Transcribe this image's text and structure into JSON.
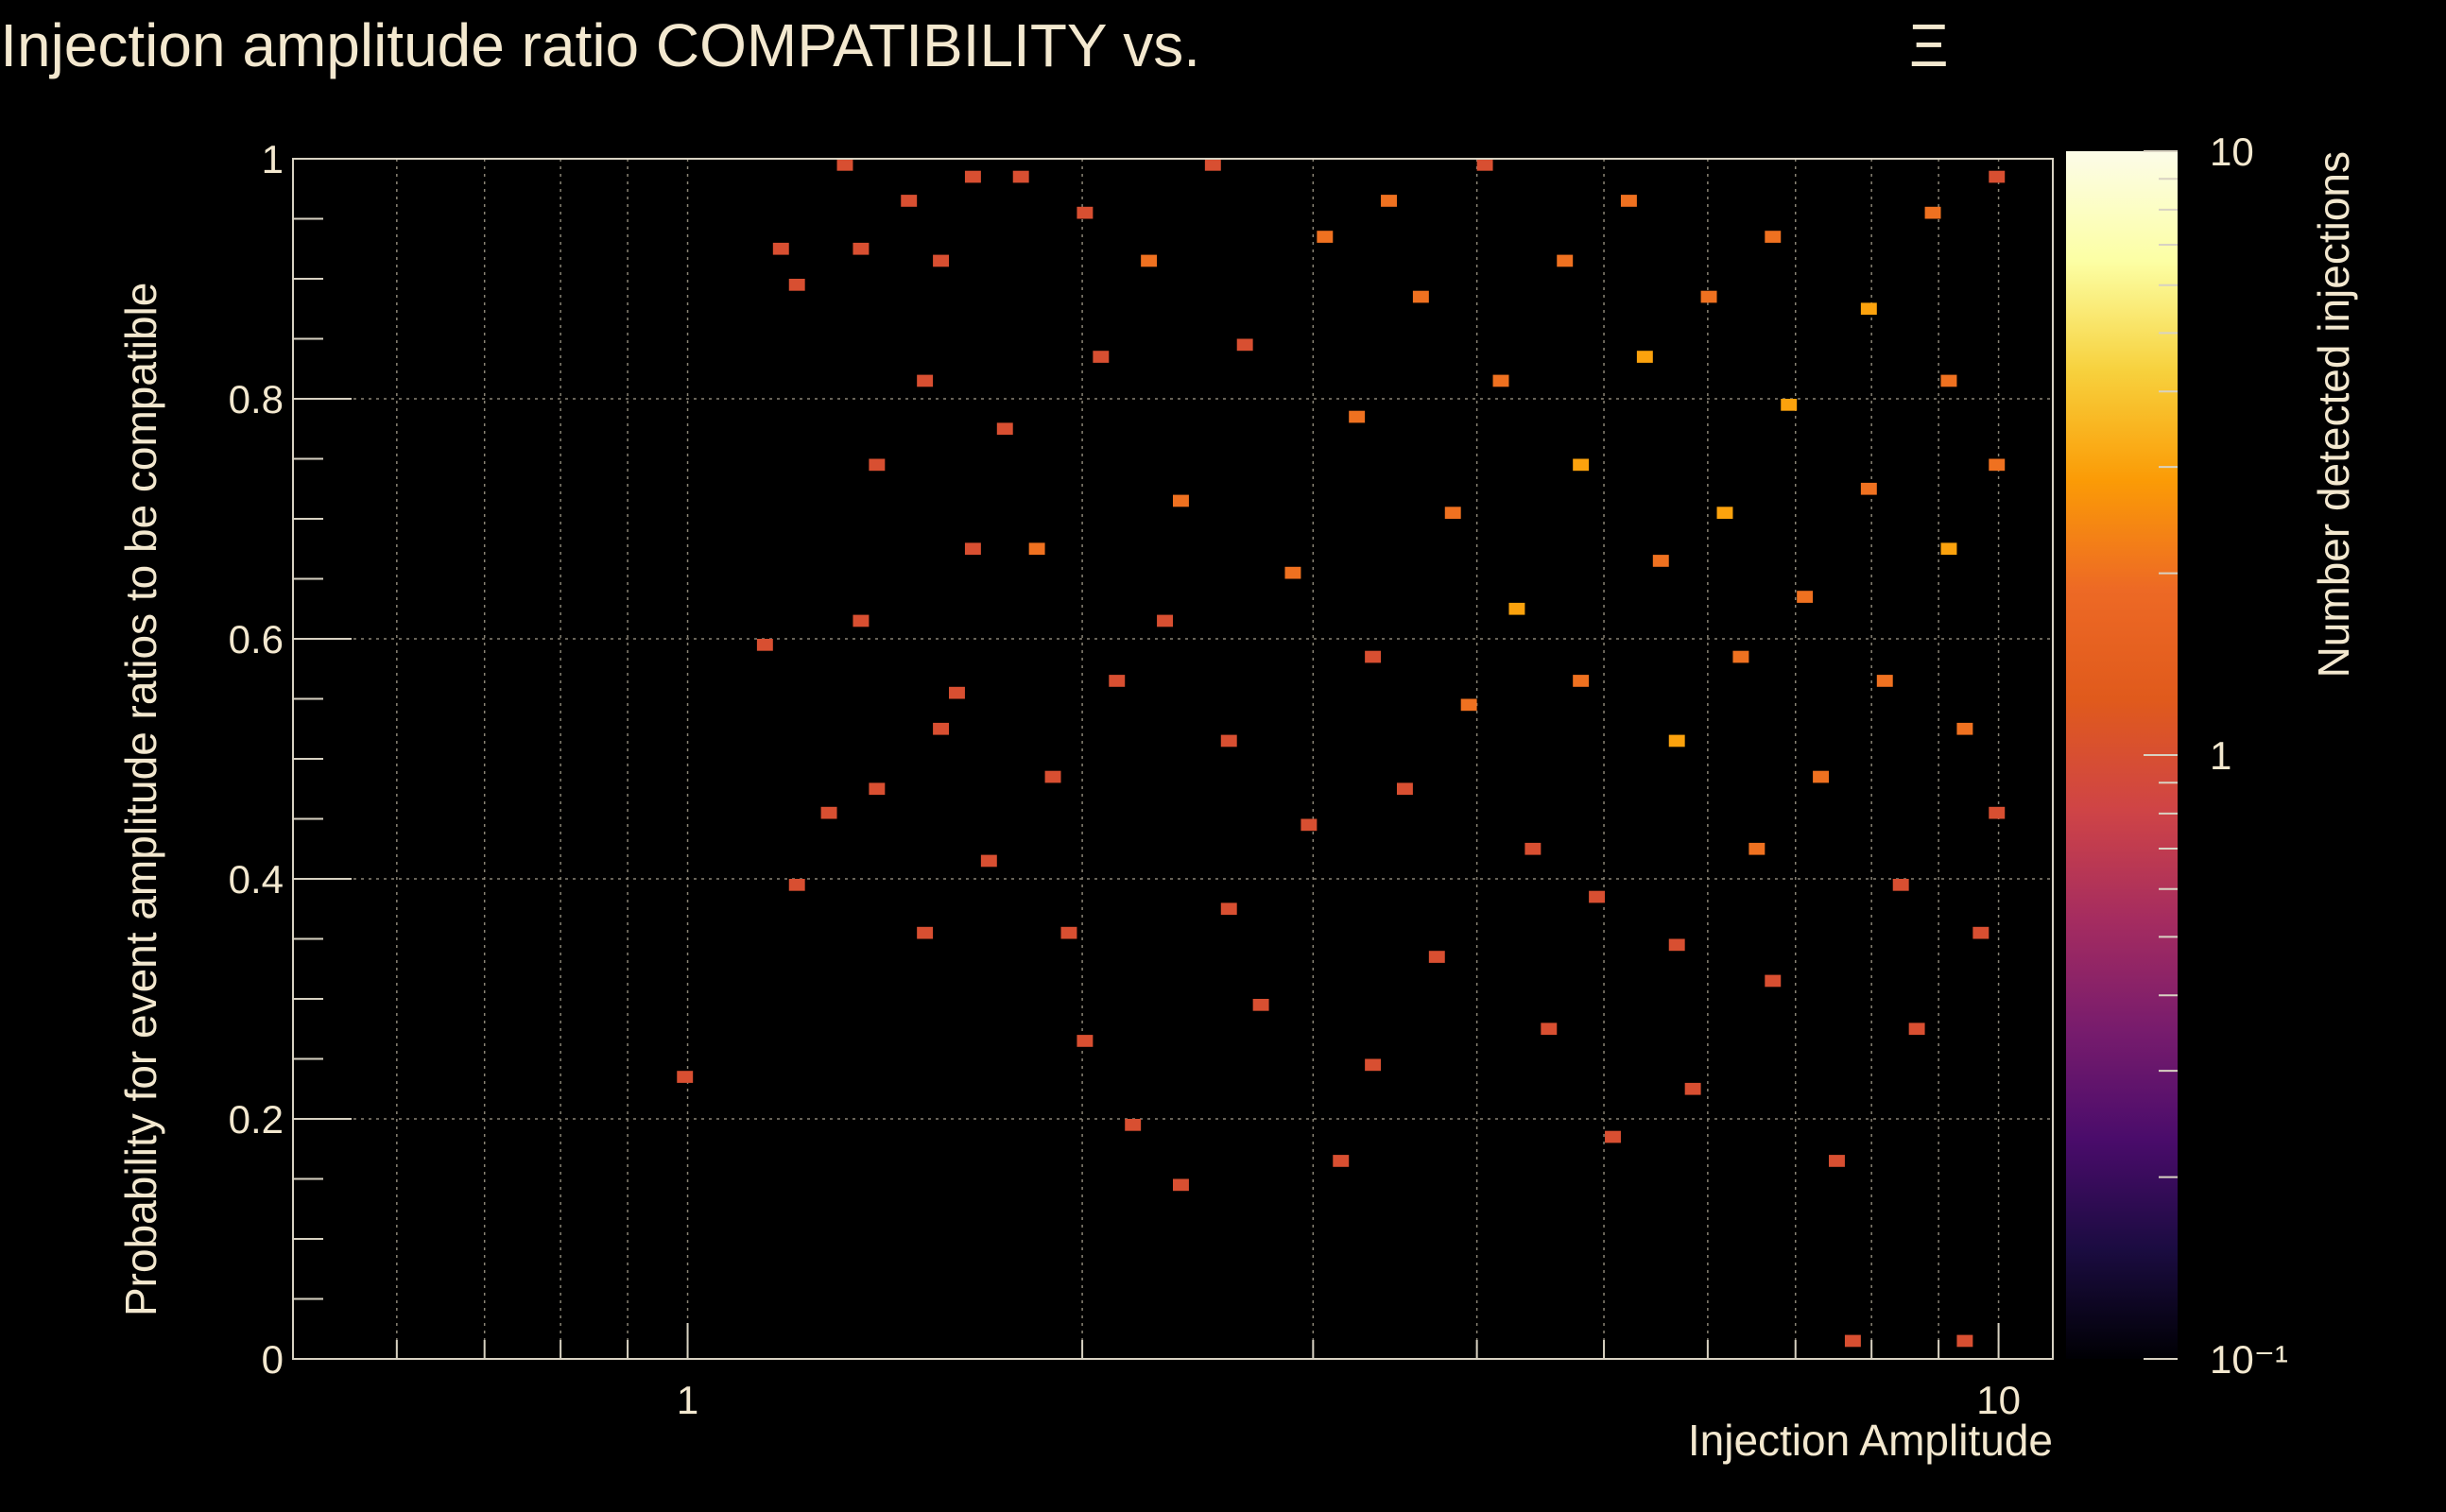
{
  "chart_data": {
    "type": "heatmap",
    "title": "Injection amplitude ratio COMPATIBILITY vs.",
    "title_symbol": "Ξ",
    "xlabel": "Injection Amplitude",
    "ylabel": "Probability for event amplitude ratios to be compatible",
    "colorbar_label": "Number detected injections",
    "x_scale": "log",
    "xlim": [
      0.5,
      11.0
    ],
    "ylim": [
      0,
      1
    ],
    "grid": true,
    "x_ticks": [
      {
        "value": 1,
        "label": "1"
      },
      {
        "value": 10,
        "label": "10"
      }
    ],
    "y_ticks": [
      {
        "value": 0,
        "label": "0"
      },
      {
        "value": 0.2,
        "label": "0.2"
      },
      {
        "value": 0.4,
        "label": "0.4"
      },
      {
        "value": 0.6,
        "label": "0.6"
      },
      {
        "value": 0.8,
        "label": "0.8"
      },
      {
        "value": 1,
        "label": "1"
      }
    ],
    "colorbar": {
      "scale": "log",
      "range": [
        0.1,
        10
      ],
      "ticks": [
        {
          "value": 10,
          "label": "10"
        },
        {
          "value": 1,
          "label": "1"
        },
        {
          "value": 0.1,
          "label": "10⁻¹"
        }
      ],
      "colormap": [
        "#000004",
        "#1b0c41",
        "#4a0c6b",
        "#781c6d",
        "#a52c60",
        "#cf4446",
        "#e05a1c",
        "#ed6925",
        "#fb9b06",
        "#f7d13d",
        "#fcffa4",
        "#fcfce8"
      ]
    },
    "x_bins": {
      "min": 0.5,
      "max": 11.0,
      "count": 110,
      "scale": "log"
    },
    "y_bins": {
      "min": 0,
      "max": 1,
      "count": 100
    },
    "cells": [
      [
        0.986,
        0.234,
        1
      ],
      [
        1.13,
        0.595,
        1
      ],
      [
        1.19,
        0.925,
        1
      ],
      [
        1.21,
        0.398,
        1
      ],
      [
        1.22,
        0.894,
        1
      ],
      [
        1.28,
        0.457,
        1
      ],
      [
        1.32,
        0.99,
        1
      ],
      [
        1.34,
        0.618,
        1
      ],
      [
        1.35,
        0.925,
        1
      ],
      [
        1.4,
        0.475,
        1
      ],
      [
        1.41,
        0.743,
        1
      ],
      [
        1.48,
        0.96,
        1
      ],
      [
        1.5,
        0.812,
        1
      ],
      [
        1.52,
        0.355,
        1
      ],
      [
        1.55,
        0.52,
        1
      ],
      [
        1.57,
        0.91,
        1
      ],
      [
        1.61,
        0.553,
        1
      ],
      [
        1.63,
        0.678,
        1
      ],
      [
        1.66,
        0.989,
        1
      ],
      [
        1.7,
        0.412,
        1
      ],
      [
        1.74,
        0.77,
        1
      ],
      [
        1.8,
        0.985,
        1
      ],
      [
        1.86,
        0.672,
        2
      ],
      [
        1.9,
        0.48,
        1
      ],
      [
        1.95,
        0.355,
        1
      ],
      [
        1.99,
        0.957,
        1
      ],
      [
        2.03,
        0.263,
        1
      ],
      [
        2.07,
        0.832,
        1
      ],
      [
        2.13,
        0.568,
        1
      ],
      [
        2.19,
        0.195,
        1
      ],
      [
        2.26,
        0.91,
        2
      ],
      [
        2.3,
        0.613,
        1
      ],
      [
        2.38,
        0.145,
        1
      ],
      [
        2.41,
        0.715,
        2
      ],
      [
        2.49,
        0.99,
        1
      ],
      [
        2.56,
        0.372,
        1
      ],
      [
        2.62,
        0.51,
        1
      ],
      [
        2.68,
        0.845,
        1
      ],
      [
        2.75,
        0.292,
        1
      ],
      [
        2.86,
        0.655,
        2
      ],
      [
        2.95,
        0.448,
        1
      ],
      [
        3.06,
        0.93,
        2
      ],
      [
        3.12,
        0.168,
        1
      ],
      [
        3.2,
        0.785,
        2
      ],
      [
        3.29,
        0.59,
        1
      ],
      [
        3.36,
        0.24,
        1
      ],
      [
        3.43,
        0.96,
        2
      ],
      [
        3.54,
        0.472,
        1
      ],
      [
        3.63,
        0.88,
        2
      ],
      [
        3.72,
        0.33,
        1
      ],
      [
        3.84,
        0.7,
        2
      ],
      [
        3.95,
        0.542,
        2
      ],
      [
        4.06,
        0.99,
        1
      ],
      [
        4.17,
        0.815,
        2
      ],
      [
        4.28,
        0.62,
        3
      ],
      [
        4.39,
        0.425,
        1
      ],
      [
        4.51,
        0.272,
        1
      ],
      [
        4.62,
        0.91,
        2
      ],
      [
        4.74,
        0.748,
        3
      ],
      [
        4.86,
        0.57,
        2
      ],
      [
        4.99,
        0.388,
        1
      ],
      [
        5.1,
        0.18,
        1
      ],
      [
        5.23,
        0.96,
        2
      ],
      [
        5.35,
        0.83,
        3
      ],
      [
        5.48,
        0.66,
        2
      ],
      [
        5.62,
        0.51,
        3
      ],
      [
        5.75,
        0.345,
        1
      ],
      [
        5.9,
        0.222,
        1
      ],
      [
        6.04,
        0.88,
        2
      ],
      [
        6.18,
        0.705,
        3
      ],
      [
        6.33,
        0.585,
        2
      ],
      [
        6.48,
        0.422,
        2
      ],
      [
        6.65,
        0.31,
        1
      ],
      [
        6.81,
        0.93,
        2
      ],
      [
        6.98,
        0.79,
        3
      ],
      [
        7.15,
        0.632,
        2
      ],
      [
        7.33,
        0.48,
        2
      ],
      [
        7.5,
        0.165,
        1
      ],
      [
        7.68,
        0.018,
        1
      ],
      [
        7.86,
        0.87,
        3
      ],
      [
        8.04,
        0.72,
        2
      ],
      [
        8.23,
        0.565,
        2
      ],
      [
        8.42,
        0.395,
        1
      ],
      [
        8.63,
        0.272,
        1
      ],
      [
        8.84,
        0.955,
        2
      ],
      [
        9.05,
        0.81,
        2
      ],
      [
        9.27,
        0.67,
        3
      ],
      [
        9.48,
        0.522,
        2
      ],
      [
        9.52,
        0.018,
        1
      ],
      [
        9.7,
        0.355,
        1
      ],
      [
        9.92,
        0.98,
        1
      ],
      [
        10.0,
        0.74,
        2
      ],
      [
        10.05,
        0.45,
        1
      ]
    ]
  }
}
